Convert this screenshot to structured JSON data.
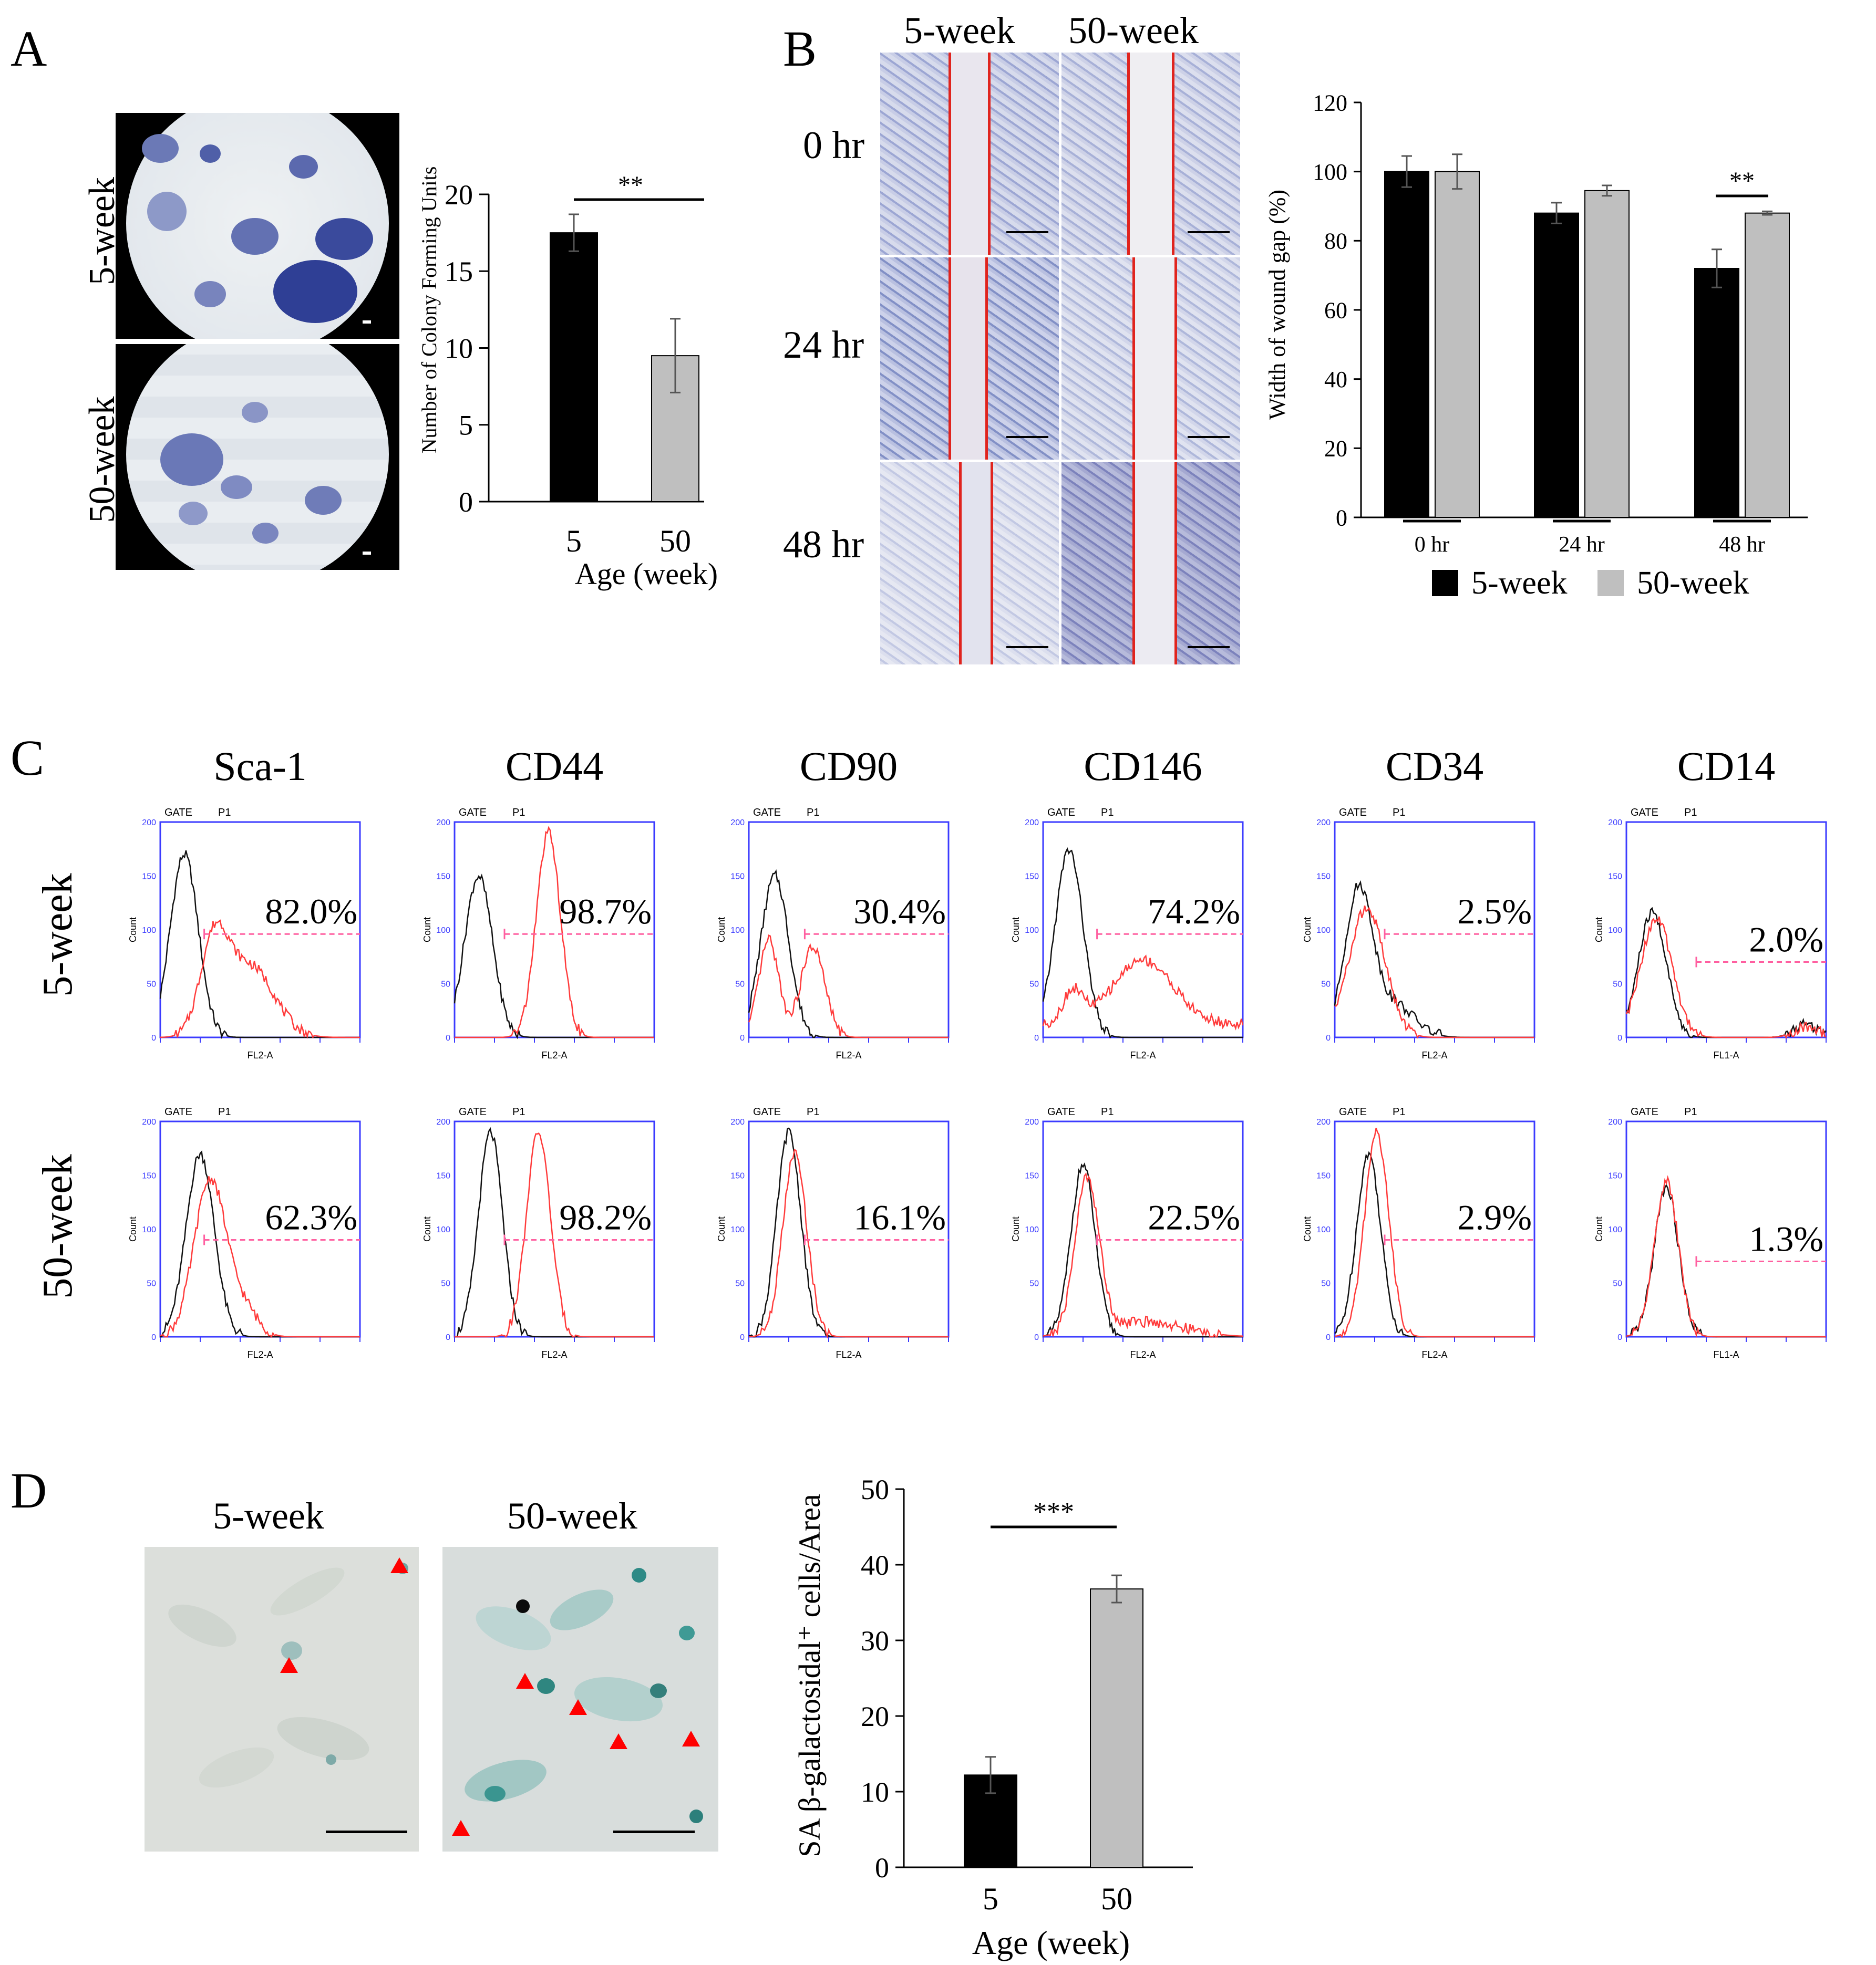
{
  "panels": {
    "a": {
      "label": "A"
    },
    "b": {
      "label": "B"
    },
    "c": {
      "label": "C"
    },
    "d": {
      "label": "D"
    }
  },
  "panel_a": {
    "row_labels": [
      "5-week",
      "50-week"
    ],
    "significance": "**"
  },
  "panel_b": {
    "col_labels": [
      "5-week",
      "50-week"
    ],
    "row_labels": [
      "0 hr",
      "24 hr",
      "48 hr"
    ],
    "significance": "**"
  },
  "panel_c": {
    "markers": [
      "Sca-1",
      "CD44",
      "CD90",
      "CD146",
      "CD34",
      "CD14"
    ],
    "row_labels": [
      "5-week",
      "50-week"
    ],
    "gate_label": "GATE",
    "gate_id": "P1",
    "y_axis_label": "Count",
    "y_ticks": [
      "0",
      "50",
      "100",
      "150",
      "200"
    ],
    "x_axis_labels": [
      "FL2-A",
      "FL2-A",
      "FL2-A",
      "FL2-A",
      "FL2-A",
      "FL1-A"
    ],
    "percentages": {
      "week5": [
        "82.0%",
        "98.7%",
        "30.4%",
        "74.2%",
        "2.5%",
        "2.0%"
      ],
      "week50": [
        "62.3%",
        "98.2%",
        "16.1%",
        "22.5%",
        "2.9%",
        "1.3%"
      ]
    }
  },
  "panel_d": {
    "col_labels": [
      "5-week",
      "50-week"
    ],
    "significance": "***"
  },
  "chart_data": [
    {
      "type": "bar",
      "title": "",
      "categories": [
        "5",
        "50"
      ],
      "values": [
        17.5,
        9.5
      ],
      "errors": [
        1.2,
        2.4
      ],
      "colors": [
        "#000000",
        "#bfbfbf"
      ],
      "xlabel": "Age (week)",
      "ylabel": "Number of Colony Forming Units",
      "ylim": [
        0,
        20
      ],
      "yticks": [
        0,
        5,
        10,
        15,
        20
      ],
      "significance": "**"
    },
    {
      "type": "bar",
      "title": "",
      "categories": [
        "0 hr",
        "24 hr",
        "48 hr"
      ],
      "series": [
        {
          "name": "5-week",
          "color": "#000000",
          "values": [
            100,
            88,
            72
          ],
          "errors": [
            4.5,
            3,
            5.5
          ]
        },
        {
          "name": "50-week",
          "color": "#bfbfbf",
          "values": [
            100,
            94.5,
            88
          ],
          "errors": [
            5,
            1.5,
            0.5
          ]
        }
      ],
      "xlabel": "",
      "ylabel": "Width of wound gap (%)",
      "ylim": [
        0,
        120
      ],
      "yticks": [
        0,
        20,
        40,
        60,
        80,
        100,
        120
      ],
      "significance": "**"
    },
    {
      "type": "bar",
      "title": "",
      "categories": [
        "5",
        "50"
      ],
      "values": [
        12.2,
        36.8
      ],
      "errors": [
        2.4,
        1.8
      ],
      "colors": [
        "#000000",
        "#bfbfbf"
      ],
      "xlabel": "Age (week)",
      "ylabel": "SA β-galactosidal⁺ cells/Area",
      "ylim": [
        0,
        50
      ],
      "yticks": [
        0,
        10,
        20,
        30,
        40,
        50
      ],
      "significance": "***"
    }
  ]
}
